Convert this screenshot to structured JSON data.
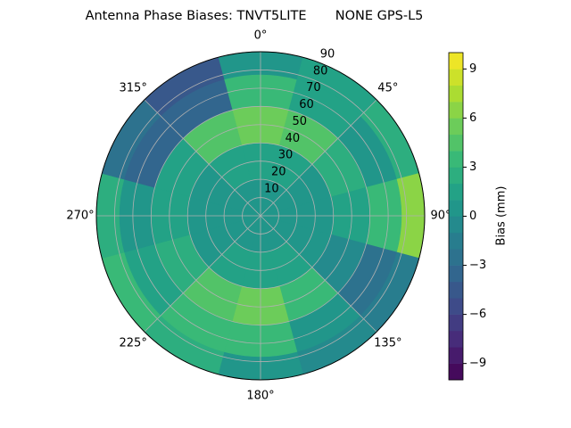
{
  "chart_data": {
    "type": "polar-contour",
    "title": "Antenna Phase Biases: TNVT5LITE       NONE GPS-L5",
    "colormap": "viridis",
    "rlim": [
      0,
      90
    ],
    "rticks": [
      10,
      20,
      30,
      40,
      50,
      60,
      70,
      80,
      90
    ],
    "thetaticks": [
      {
        "value": 0,
        "label": "0°"
      },
      {
        "value": 45,
        "label": "45°"
      },
      {
        "value": 90,
        "label": "90°"
      },
      {
        "value": 135,
        "label": "135°"
      },
      {
        "value": 180,
        "label": "180°"
      },
      {
        "value": 225,
        "label": "225°"
      },
      {
        "value": 270,
        "label": "270°"
      },
      {
        "value": 315,
        "label": "315°"
      }
    ],
    "grid": true,
    "field": {
      "azimuth": [
        0,
        30,
        60,
        90,
        120,
        150,
        180,
        210,
        240,
        270,
        300,
        330
      ],
      "zenith": [
        10,
        30,
        50,
        70,
        85
      ],
      "values": [
        [
          0,
          0,
          0,
          0,
          0,
          0,
          0,
          0,
          0,
          0,
          0,
          0
        ],
        [
          1,
          1,
          0,
          0,
          0,
          1,
          1,
          1,
          0,
          0,
          0,
          1
        ],
        [
          5,
          4,
          2,
          1,
          -1,
          3,
          5,
          4,
          2,
          1,
          1,
          4
        ],
        [
          3,
          1,
          0,
          3,
          -3,
          0,
          3,
          3,
          1,
          0,
          -4,
          -4
        ],
        [
          0,
          1,
          2,
          6,
          -2,
          -1,
          0,
          2,
          3,
          2,
          -3,
          -5
        ]
      ]
    },
    "colorbar": {
      "label": "Bias (mm)",
      "clim": [
        -10,
        10
      ],
      "levels": 20,
      "ticks": [
        {
          "value": -9,
          "label": "−9"
        },
        {
          "value": -6,
          "label": "−6"
        },
        {
          "value": -3,
          "label": "−3"
        },
        0,
        3,
        6,
        9
      ]
    }
  }
}
